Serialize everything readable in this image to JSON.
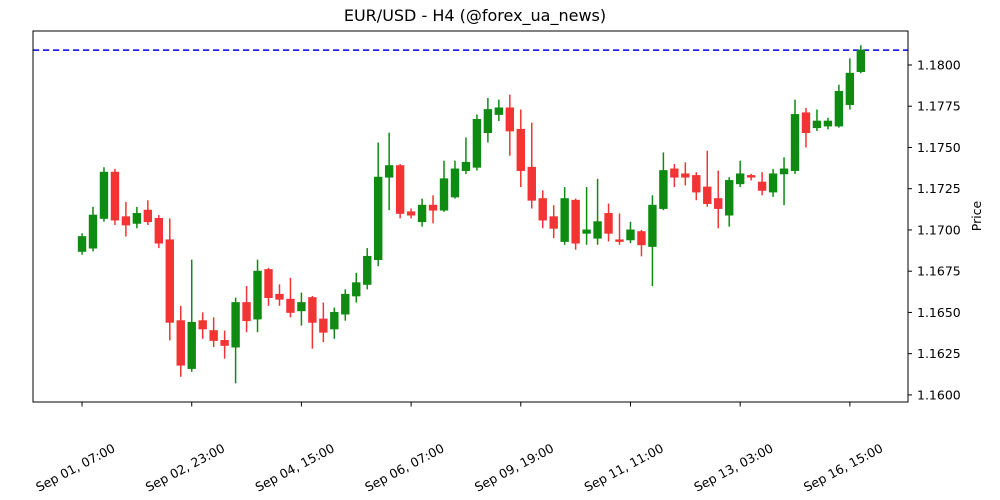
{
  "title": "EUR/USD - H4 (@forex_ua_news)",
  "chart_data": {
    "type": "candlestick",
    "symbol": "EUR/USD",
    "timeframe": "H4",
    "source_handle": "@forex_ua_news",
    "ylabel": "Price",
    "grid": false,
    "legend_position": "none",
    "ylim": [
      1.15957,
      1.18206
    ],
    "xlim": [
      -4.47,
      75.3
    ],
    "y_ticks": [
      1.16,
      1.1625,
      1.165,
      1.1675,
      1.17,
      1.1725,
      1.175,
      1.1775,
      1.18
    ],
    "y_tick_labels": [
      "1.1600",
      "1.1625",
      "1.1650",
      "1.1675",
      "1.1700",
      "1.1725",
      "1.1750",
      "1.1775",
      "1.1800"
    ],
    "x_tick_indices": [
      0,
      10,
      20,
      30,
      40,
      50,
      60,
      70
    ],
    "x_tick_labels": [
      "Sep 01, 07:00",
      "Sep 02, 23:00",
      "Sep 04, 15:00",
      "Sep 06, 07:00",
      "Sep 09, 19:00",
      "Sep 11, 11:00",
      "Sep 13, 03:00",
      "Sep 16, 15:00"
    ],
    "hline": {
      "value": 1.1809,
      "color": "#0000ee",
      "style": "dashed"
    },
    "up_color": "#0f8b12",
    "down_color": "#f23434",
    "candle_columns": [
      "open",
      "high",
      "low",
      "close"
    ],
    "candles": [
      [
        1.1687,
        1.1698,
        1.1685,
        1.1696
      ],
      [
        1.1689,
        1.1714,
        1.1687,
        1.1709
      ],
      [
        1.1707,
        1.1738,
        1.1705,
        1.1735
      ],
      [
        1.1735,
        1.1737,
        1.1703,
        1.1706
      ],
      [
        1.1708,
        1.1717,
        1.1696,
        1.1703
      ],
      [
        1.1704,
        1.1714,
        1.1701,
        1.171
      ],
      [
        1.1712,
        1.1718,
        1.1703,
        1.1705
      ],
      [
        1.1707,
        1.1709,
        1.1689,
        1.1692
      ],
      [
        1.1694,
        1.1707,
        1.1633,
        1.1644
      ],
      [
        1.1645,
        1.1654,
        1.1611,
        1.1618
      ],
      [
        1.1616,
        1.1682,
        1.1614,
        1.1644
      ],
      [
        1.1645,
        1.165,
        1.1634,
        1.164
      ],
      [
        1.1639,
        1.1647,
        1.1629,
        1.1633
      ],
      [
        1.1633,
        1.1639,
        1.1622,
        1.163
      ],
      [
        1.1629,
        1.1659,
        1.1607,
        1.1656
      ],
      [
        1.1656,
        1.1666,
        1.1638,
        1.1645
      ],
      [
        1.1646,
        1.1682,
        1.1638,
        1.1675
      ],
      [
        1.1676,
        1.1677,
        1.1654,
        1.1659
      ],
      [
        1.1661,
        1.1667,
        1.1654,
        1.1658
      ],
      [
        1.1658,
        1.1671,
        1.1647,
        1.165
      ],
      [
        1.1651,
        1.1662,
        1.1642,
        1.1656
      ],
      [
        1.1659,
        1.166,
        1.1628,
        1.1644
      ],
      [
        1.1646,
        1.1656,
        1.1632,
        1.1638
      ],
      [
        1.164,
        1.1653,
        1.1634,
        1.165
      ],
      [
        1.1649,
        1.1664,
        1.1645,
        1.1661
      ],
      [
        1.166,
        1.1674,
        1.1656,
        1.1668
      ],
      [
        1.1667,
        1.1689,
        1.1664,
        1.1684
      ],
      [
        1.1682,
        1.1753,
        1.1678,
        1.1732
      ],
      [
        1.1732,
        1.1759,
        1.1712,
        1.1739
      ],
      [
        1.1739,
        1.174,
        1.1707,
        1.171
      ],
      [
        1.1711,
        1.1713,
        1.1707,
        1.1709
      ],
      [
        1.1705,
        1.1719,
        1.1702,
        1.1715
      ],
      [
        1.1715,
        1.1721,
        1.1704,
        1.1712
      ],
      [
        1.1712,
        1.1742,
        1.1711,
        1.1731
      ],
      [
        1.172,
        1.1742,
        1.1719,
        1.1737
      ],
      [
        1.1736,
        1.1756,
        1.1734,
        1.1741
      ],
      [
        1.1738,
        1.177,
        1.1736,
        1.1767
      ],
      [
        1.1759,
        1.178,
        1.1753,
        1.1773
      ],
      [
        1.177,
        1.1779,
        1.1766,
        1.1774
      ],
      [
        1.1774,
        1.1782,
        1.1745,
        1.176
      ],
      [
        1.1761,
        1.1773,
        1.1726,
        1.1736
      ],
      [
        1.1738,
        1.1765,
        1.1713,
        1.1718
      ],
      [
        1.1719,
        1.1724,
        1.1701,
        1.1706
      ],
      [
        1.1708,
        1.1715,
        1.1695,
        1.1701
      ],
      [
        1.1693,
        1.1726,
        1.1691,
        1.1719
      ],
      [
        1.1718,
        1.1719,
        1.1688,
        1.1692
      ],
      [
        1.1698,
        1.1726,
        1.1691,
        1.17
      ],
      [
        1.1695,
        1.1731,
        1.1691,
        1.1705
      ],
      [
        1.171,
        1.1716,
        1.1693,
        1.1698
      ],
      [
        1.1694,
        1.171,
        1.1691,
        1.1693
      ],
      [
        1.1694,
        1.1705,
        1.1692,
        1.17
      ],
      [
        1.1699,
        1.17,
        1.1684,
        1.1691
      ],
      [
        1.169,
        1.1721,
        1.1666,
        1.1715
      ],
      [
        1.1713,
        1.1747,
        1.1712,
        1.1736
      ],
      [
        1.1737,
        1.174,
        1.1726,
        1.1732
      ],
      [
        1.1734,
        1.1741,
        1.1727,
        1.1732
      ],
      [
        1.1733,
        1.1735,
        1.1718,
        1.1723
      ],
      [
        1.1726,
        1.1748,
        1.1714,
        1.1716
      ],
      [
        1.1719,
        1.1736,
        1.1701,
        1.1713
      ],
      [
        1.1709,
        1.1732,
        1.1702,
        1.173
      ],
      [
        1.1728,
        1.1742,
        1.1726,
        1.1734
      ],
      [
        1.1733,
        1.1734,
        1.173,
        1.1732
      ],
      [
        1.1729,
        1.1735,
        1.1721,
        1.1724
      ],
      [
        1.1723,
        1.1737,
        1.172,
        1.1734
      ],
      [
        1.1734,
        1.1744,
        1.1715,
        1.1737
      ],
      [
        1.1736,
        1.1779,
        1.1734,
        1.177
      ],
      [
        1.1771,
        1.1774,
        1.175,
        1.1759
      ],
      [
        1.1762,
        1.1773,
        1.176,
        1.1766
      ],
      [
        1.1763,
        1.1768,
        1.1761,
        1.1766
      ],
      [
        1.1763,
        1.1788,
        1.1762,
        1.1784
      ],
      [
        1.1776,
        1.1804,
        1.1773,
        1.1795
      ],
      [
        1.1796,
        1.1812,
        1.1795,
        1.1809
      ]
    ]
  }
}
